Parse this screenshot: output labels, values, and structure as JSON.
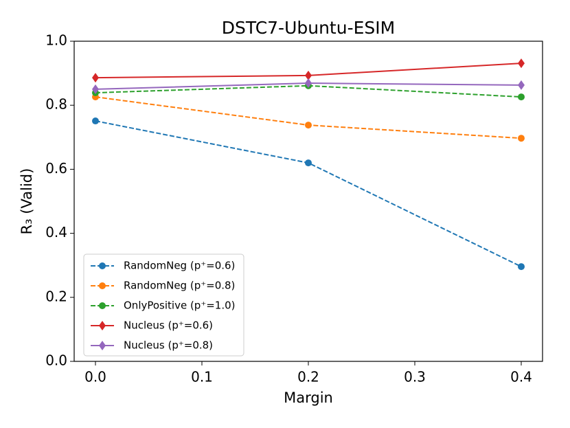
{
  "chart_data": {
    "type": "line",
    "title": "DSTC7-Ubuntu-ESIM",
    "x_label": "Margin",
    "y_label": "R₃ (Valid)",
    "x": [
      0.0,
      0.2,
      0.4
    ],
    "series": [
      {
        "name": "RandomNeg (p⁺=0.6)",
        "color": "#1f77b4",
        "marker": "circle",
        "dashed": true,
        "values": [
          0.751,
          0.62,
          0.296
        ]
      },
      {
        "name": "RandomNeg (p⁺=0.8)",
        "color": "#ff7f0e",
        "marker": "circle",
        "dashed": true,
        "values": [
          0.826,
          0.738,
          0.697
        ]
      },
      {
        "name": "OnlyPositive (p⁺=1.0)",
        "color": "#2ca02c",
        "marker": "circle",
        "dashed": true,
        "values": [
          0.839,
          0.861,
          0.826
        ]
      },
      {
        "name": "Nucleus (p⁺=0.6)",
        "color": "#d62728",
        "marker": "diamond",
        "dashed": false,
        "values": [
          0.886,
          0.893,
          0.931
        ]
      },
      {
        "name": "Nucleus (p⁺=0.8)",
        "color": "#9467bd",
        "marker": "diamond",
        "dashed": false,
        "values": [
          0.85,
          0.869,
          0.863
        ]
      }
    ],
    "xlim": [
      -0.02,
      0.42
    ],
    "xticks": [
      {
        "value": 0,
        "label": "0.0"
      },
      0.1,
      0.2,
      0.3,
      0.4
    ],
    "ylim": [
      0,
      1
    ],
    "yticks": [
      {
        "value": 0,
        "label": "0.0"
      },
      0.2,
      0.4,
      0.6,
      0.8,
      {
        "value": 1,
        "label": "1.0"
      }
    ],
    "grid": false,
    "legend": "lower left"
  }
}
